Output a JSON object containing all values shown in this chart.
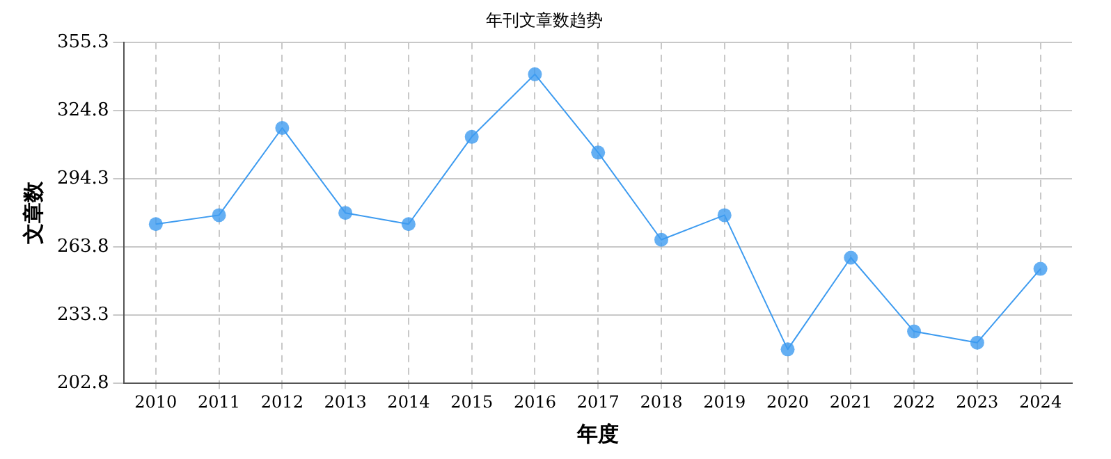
{
  "chart_data": {
    "type": "line",
    "title": "年刊文章数趋势",
    "xlabel": "年度",
    "ylabel": "文章数",
    "categories": [
      "2010",
      "2011",
      "2012",
      "2013",
      "2014",
      "2015",
      "2016",
      "2017",
      "2018",
      "2019",
      "2020",
      "2021",
      "2022",
      "2023",
      "2024"
    ],
    "series": [
      {
        "color": "#3d9bf0",
        "values": [
          274,
          278,
          317,
          279,
          274,
          313,
          341,
          306,
          267,
          278,
          218,
          259,
          226,
          221,
          254
        ]
      }
    ],
    "ylim": [
      202.8,
      355.3
    ],
    "yticks": [
      202.8,
      233.3,
      263.8,
      294.3,
      324.8,
      355.3
    ],
    "grid": true,
    "marker": "circle",
    "line_style": "solid"
  }
}
